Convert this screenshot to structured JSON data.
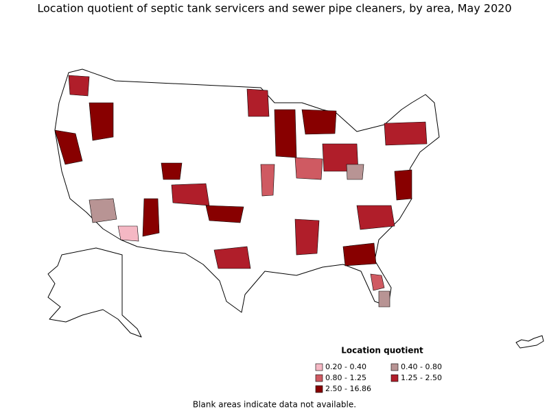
{
  "title": "Location quotient of septic tank servicers and sewer pipe cleaners, by area, May 2020",
  "legend": {
    "title": "Location quotient",
    "items": [
      {
        "label": "0.20 - 0.40",
        "color": "#f5b8c4"
      },
      {
        "label": "0.40 - 0.80",
        "color": "#b89494"
      },
      {
        "label": "0.80 - 1.25",
        "color": "#cf5a62"
      },
      {
        "label": "1.25 - 2.50",
        "color": "#b01e2a"
      },
      {
        "label": "2.50 - 16.86",
        "color": "#880000"
      }
    ]
  },
  "footnote": "Blank areas indicate data not available."
}
